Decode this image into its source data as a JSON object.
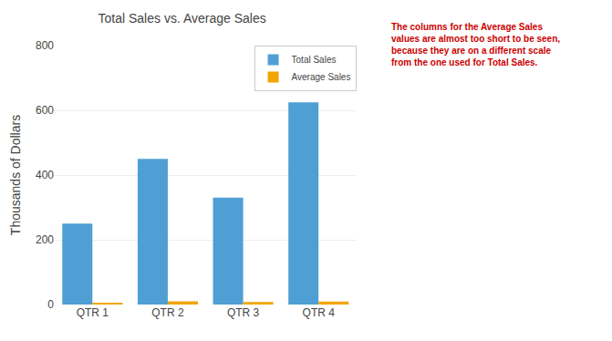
{
  "chart_data": {
    "type": "bar",
    "title": "Total Sales vs. Average Sales",
    "categories": [
      "QTR 1",
      "QTR 2",
      "QTR 3",
      "QTR 4"
    ],
    "series": [
      {
        "name": "Total Sales",
        "color": "#4f9fd4",
        "values": [
          250,
          450,
          330,
          625
        ]
      },
      {
        "name": "Average Sales",
        "color": "#f0a500",
        "values": [
          5,
          10,
          8,
          9
        ]
      }
    ],
    "ylabel": "Thousands of Dollars",
    "ylim": [
      0,
      800
    ],
    "yticks": [
      0,
      200,
      400,
      600,
      800
    ],
    "grid": true,
    "legend": "upper right",
    "annotations": [
      {
        "text": "The columns for the Average Sales\nvalues are almost too short to be seen,\nbecause they are on a different scale\nfrom the one used for Total Sales.",
        "color": "#cc0000"
      }
    ]
  }
}
